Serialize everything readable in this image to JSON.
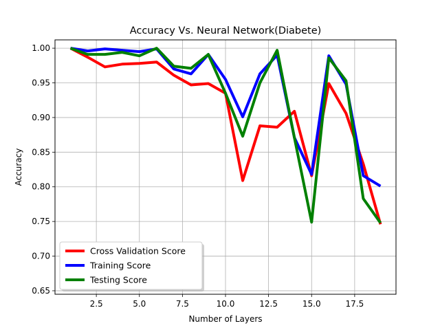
{
  "chart_data": {
    "type": "line",
    "title": "Accuracy Vs. Neural Network(Diabete)",
    "xlabel": "Number of Layers",
    "ylabel": "Accuracy",
    "xlim": [
      0.1,
      19.9
    ],
    "ylim": [
      0.645,
      1.012
    ],
    "x_ticks": [
      2.5,
      5.0,
      7.5,
      10.0,
      12.5,
      15.0,
      17.5
    ],
    "x_tick_labels": [
      "2.5",
      "5.0",
      "7.5",
      "10.0",
      "12.5",
      "15.0",
      "17.5"
    ],
    "y_ticks": [
      0.65,
      0.7,
      0.75,
      0.8,
      0.85,
      0.9,
      0.95,
      1.0
    ],
    "y_tick_labels": [
      "0.65",
      "0.70",
      "0.75",
      "0.80",
      "0.85",
      "0.90",
      "0.95",
      "1.00"
    ],
    "grid": true,
    "legend_position": "lower-left",
    "x": [
      1,
      2,
      3,
      4,
      5,
      6,
      7,
      8,
      9,
      10,
      11,
      12,
      13,
      14,
      15,
      16,
      17,
      18,
      19
    ],
    "series": [
      {
        "name": "Cross Validation Score",
        "color": "#ff0000",
        "values": [
          1.0,
          0.987,
          0.973,
          0.977,
          0.978,
          0.98,
          0.961,
          0.947,
          0.949,
          0.935,
          0.809,
          0.888,
          0.886,
          0.909,
          0.816,
          0.949,
          0.906,
          0.833,
          0.746
        ]
      },
      {
        "name": "Training Score",
        "color": "#0000ff",
        "values": [
          1.0,
          0.996,
          0.999,
          0.997,
          0.995,
          0.999,
          0.97,
          0.963,
          0.991,
          0.955,
          0.901,
          0.963,
          0.99,
          0.871,
          0.818,
          0.989,
          0.948,
          0.816,
          0.801
        ]
      },
      {
        "name": "Testing Score",
        "color": "#008000",
        "values": [
          1.0,
          0.991,
          0.991,
          0.994,
          0.989,
          1.0,
          0.974,
          0.971,
          0.991,
          0.935,
          0.873,
          0.95,
          0.997,
          0.871,
          0.749,
          0.986,
          0.953,
          0.783,
          0.748
        ]
      }
    ]
  }
}
